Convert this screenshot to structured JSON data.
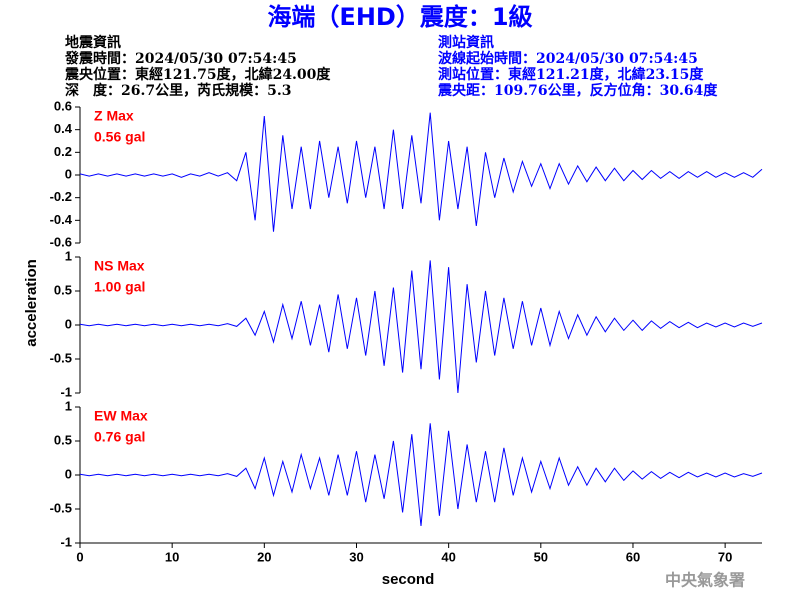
{
  "header": {
    "title": "海端（EHD）震度：1級",
    "left": [
      "地震資訊",
      "發震時間：2024/05/30 07:54:45",
      "震央位置：東經121.75度，北緯24.00度",
      "深　度：26.7公里，芮氏規模：5.3"
    ],
    "right": [
      "測站資訊",
      "波線起始時間：2024/05/30 07:54:45",
      "測站位置：東經121.21度，北緯23.15度",
      "震央距：109.76公里，反方位角：30.64度"
    ]
  },
  "axes": {
    "xlabel": "second",
    "ylabel": "acceleration"
  },
  "footer": "中央氣象署",
  "chart_data": [
    {
      "type": "line",
      "label": "Z Max",
      "max_label": "0.56 gal",
      "color": "#0000ff",
      "label_color": "#ff0000",
      "xlim": [
        0,
        74
      ],
      "ylim": [
        -0.6,
        0.6
      ],
      "yticks": [
        0.6,
        0.4,
        0.2,
        0,
        -0.2,
        -0.4,
        -0.6
      ],
      "x": [
        0,
        1,
        2,
        3,
        4,
        5,
        6,
        7,
        8,
        9,
        10,
        11,
        12,
        13,
        14,
        15,
        16,
        17,
        18,
        19,
        20,
        21,
        22,
        23,
        24,
        25,
        26,
        27,
        28,
        29,
        30,
        31,
        32,
        33,
        34,
        35,
        36,
        37,
        38,
        39,
        40,
        41,
        42,
        43,
        44,
        45,
        46,
        47,
        48,
        49,
        50,
        51,
        52,
        53,
        54,
        55,
        56,
        57,
        58,
        59,
        60,
        61,
        62,
        63,
        64,
        65,
        66,
        67,
        68,
        69,
        70,
        71,
        72,
        73,
        74
      ],
      "values": [
        0.01,
        -0.01,
        0.01,
        -0.01,
        0.01,
        -0.01,
        0.01,
        -0.01,
        0.01,
        -0.01,
        0.01,
        -0.02,
        0.01,
        -0.01,
        0.02,
        -0.01,
        0.02,
        -0.05,
        0.2,
        -0.4,
        0.52,
        -0.5,
        0.35,
        -0.3,
        0.25,
        -0.3,
        0.3,
        -0.2,
        0.25,
        -0.25,
        0.3,
        -0.2,
        0.25,
        -0.3,
        0.4,
        -0.3,
        0.35,
        -0.25,
        0.55,
        -0.4,
        0.3,
        -0.3,
        0.25,
        -0.45,
        0.2,
        -0.2,
        0.15,
        -0.15,
        0.12,
        -0.1,
        0.1,
        -0.12,
        0.1,
        -0.08,
        0.08,
        -0.06,
        0.07,
        -0.05,
        0.06,
        -0.05,
        0.04,
        -0.04,
        0.04,
        -0.03,
        0.03,
        -0.03,
        0.03,
        -0.02,
        0.03,
        -0.02,
        0.02,
        -0.02,
        0.02,
        -0.02,
        0.05
      ]
    },
    {
      "type": "line",
      "label": "NS Max",
      "max_label": "1.00 gal",
      "color": "#0000ff",
      "label_color": "#ff0000",
      "xlim": [
        0,
        74
      ],
      "ylim": [
        -1,
        1
      ],
      "yticks": [
        1,
        0.5,
        0,
        -0.5,
        -1
      ],
      "x": [
        0,
        1,
        2,
        3,
        4,
        5,
        6,
        7,
        8,
        9,
        10,
        11,
        12,
        13,
        14,
        15,
        16,
        17,
        18,
        19,
        20,
        21,
        22,
        23,
        24,
        25,
        26,
        27,
        28,
        29,
        30,
        31,
        32,
        33,
        34,
        35,
        36,
        37,
        38,
        39,
        40,
        41,
        42,
        43,
        44,
        45,
        46,
        47,
        48,
        49,
        50,
        51,
        52,
        53,
        54,
        55,
        56,
        57,
        58,
        59,
        60,
        61,
        62,
        63,
        64,
        65,
        66,
        67,
        68,
        69,
        70,
        71,
        72,
        73,
        74
      ],
      "values": [
        0.01,
        -0.01,
        0.01,
        -0.01,
        0.01,
        -0.01,
        0.01,
        -0.01,
        0.01,
        -0.01,
        0.01,
        -0.01,
        0.01,
        -0.01,
        0.01,
        -0.01,
        0.02,
        -0.02,
        0.1,
        -0.15,
        0.2,
        -0.25,
        0.3,
        -0.2,
        0.35,
        -0.3,
        0.3,
        -0.4,
        0.45,
        -0.35,
        0.4,
        -0.45,
        0.5,
        -0.6,
        0.55,
        -0.7,
        0.8,
        -0.65,
        0.95,
        -0.8,
        0.85,
        -1.0,
        0.6,
        -0.55,
        0.5,
        -0.45,
        0.4,
        -0.35,
        0.35,
        -0.3,
        0.25,
        -0.3,
        0.2,
        -0.2,
        0.15,
        -0.15,
        0.12,
        -0.1,
        0.1,
        -0.08,
        0.07,
        -0.08,
        0.06,
        -0.05,
        0.05,
        -0.04,
        0.04,
        -0.04,
        0.03,
        -0.03,
        0.03,
        -0.03,
        0.03,
        -0.02,
        0.03
      ]
    },
    {
      "type": "line",
      "label": "EW Max",
      "max_label": "0.76 gal",
      "color": "#0000ff",
      "label_color": "#ff0000",
      "xlim": [
        0,
        74
      ],
      "ylim": [
        -1,
        1
      ],
      "yticks": [
        1,
        0.5,
        0,
        -0.5,
        -1
      ],
      "xticks": [
        0,
        10,
        20,
        30,
        40,
        50,
        60,
        70
      ],
      "x": [
        0,
        1,
        2,
        3,
        4,
        5,
        6,
        7,
        8,
        9,
        10,
        11,
        12,
        13,
        14,
        15,
        16,
        17,
        18,
        19,
        20,
        21,
        22,
        23,
        24,
        25,
        26,
        27,
        28,
        29,
        30,
        31,
        32,
        33,
        34,
        35,
        36,
        37,
        38,
        39,
        40,
        41,
        42,
        43,
        44,
        45,
        46,
        47,
        48,
        49,
        50,
        51,
        52,
        53,
        54,
        55,
        56,
        57,
        58,
        59,
        60,
        61,
        62,
        63,
        64,
        65,
        66,
        67,
        68,
        69,
        70,
        71,
        72,
        73,
        74
      ],
      "values": [
        0.01,
        -0.01,
        0.01,
        -0.01,
        0.01,
        -0.01,
        0.01,
        -0.01,
        0.01,
        -0.01,
        0.01,
        -0.01,
        0.01,
        -0.01,
        0.01,
        -0.01,
        0.02,
        -0.02,
        0.1,
        -0.2,
        0.25,
        -0.3,
        0.2,
        -0.25,
        0.3,
        -0.2,
        0.25,
        -0.3,
        0.3,
        -0.3,
        0.35,
        -0.4,
        0.3,
        -0.35,
        0.5,
        -0.55,
        0.6,
        -0.75,
        0.76,
        -0.6,
        0.65,
        -0.5,
        0.45,
        -0.4,
        0.35,
        -0.4,
        0.4,
        -0.3,
        0.25,
        -0.25,
        0.2,
        -0.2,
        0.25,
        -0.15,
        0.12,
        -0.15,
        0.1,
        -0.1,
        0.1,
        -0.08,
        0.06,
        -0.06,
        0.05,
        -0.05,
        0.04,
        -0.04,
        0.04,
        -0.03,
        0.03,
        -0.03,
        0.03,
        -0.03,
        0.02,
        -0.02,
        0.03
      ]
    }
  ]
}
